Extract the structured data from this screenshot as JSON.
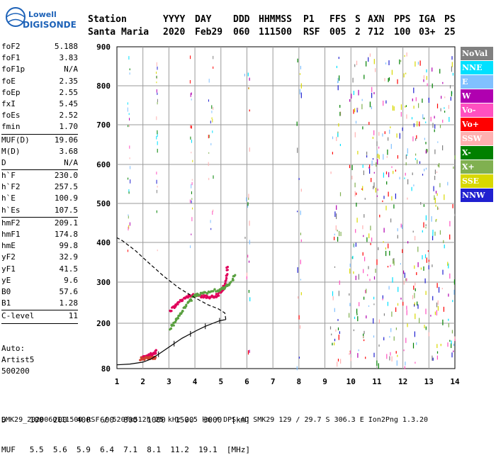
{
  "logo": {
    "line1": "Lowell",
    "line2": "DIGISONDE"
  },
  "header": {
    "labels": [
      "Station",
      "YYYY",
      "DAY",
      "DDD",
      "HHMMSS",
      "P1",
      "FFS",
      "S",
      "AXN",
      "PPS",
      "IGA",
      "PS"
    ],
    "values": [
      "Santa Maria",
      "2020",
      "Feb29",
      "060",
      "111500",
      "RSF",
      "005",
      "2",
      "712",
      "100",
      "03+",
      "25"
    ]
  },
  "params": {
    "group1": [
      {
        "name": "foF2",
        "value": "5.188"
      },
      {
        "name": "foF1",
        "value": "3.83"
      },
      {
        "name": "foF1p",
        "value": "N/A"
      },
      {
        "name": "foE",
        "value": "2.35"
      },
      {
        "name": "foEp",
        "value": "2.55"
      },
      {
        "name": "fxI",
        "value": "5.45"
      },
      {
        "name": "foEs",
        "value": "2.52"
      },
      {
        "name": "fmin",
        "value": "1.70"
      }
    ],
    "group2": [
      {
        "name": "MUF(D)",
        "value": "19.06"
      },
      {
        "name": "M(D)",
        "value": "3.68"
      },
      {
        "name": "D",
        "value": "N/A"
      }
    ],
    "group3": [
      {
        "name": "h`F",
        "value": "230.0"
      },
      {
        "name": "h`F2",
        "value": "257.5"
      },
      {
        "name": "h`E",
        "value": "100.9"
      },
      {
        "name": "h`Es",
        "value": "107.5"
      }
    ],
    "group4": [
      {
        "name": "hmF2",
        "value": "209.1"
      },
      {
        "name": "hmF1",
        "value": "174.8"
      },
      {
        "name": "hmE",
        "value": "99.8"
      },
      {
        "name": "yF2",
        "value": "32.9"
      },
      {
        "name": "yF1",
        "value": "41.5"
      },
      {
        "name": "yE",
        "value": "9.6"
      },
      {
        "name": "B0",
        "value": "57.6"
      },
      {
        "name": "B1",
        "value": "1.28"
      }
    ],
    "group5": [
      {
        "name": "C-level",
        "value": "11"
      }
    ]
  },
  "auto": {
    "line1": "Auto:",
    "line2": "Artist5",
    "line3": "500200"
  },
  "legend": [
    {
      "label": "NoVal",
      "color": "#808080"
    },
    {
      "label": "NNE",
      "color": "#00e0ff"
    },
    {
      "label": "E",
      "color": "#80c0ff"
    },
    {
      "label": "W",
      "color": "#b000b0"
    },
    {
      "label": "Vo-",
      "color": "#ff50c0"
    },
    {
      "label": "Vo+",
      "color": "#ff0000"
    },
    {
      "label": "SSW",
      "color": "#ffb0b0"
    },
    {
      "label": "X-",
      "color": "#008000"
    },
    {
      "label": "X+",
      "color": "#80b050"
    },
    {
      "label": "SSE",
      "color": "#d8d800"
    },
    {
      "label": "NNW",
      "color": "#2020d0"
    }
  ],
  "bottom": {
    "d_row": "D     100  200  400  600  800  1000  1500  3000  [km]",
    "muf_row": "MUF   5.5  5.6  5.9  6.4  7.1  8.1  11.2  19.1  [MHz]"
  },
  "footer": "SMK29_2020060111500.RSF / 520fx512h 25 kHz 2.5 km / DPS-4D SMK29 129 / 29.7 S 306.3 E Ion2Png 1.3.20",
  "chart_data": {
    "type": "scatter",
    "xlim": [
      1,
      14
    ],
    "ylim": [
      80,
      900
    ],
    "x_ticks": [
      "1",
      "2",
      "3",
      "4",
      "5",
      "6",
      "7",
      "8",
      "9",
      "10",
      "11",
      "12",
      "13",
      "14"
    ],
    "y_ticks": [
      "80",
      "200",
      "300",
      "400",
      "500",
      "600",
      "700",
      "800",
      "900"
    ],
    "y_tick_values": [
      80,
      200,
      300,
      400,
      500,
      600,
      700,
      800,
      900
    ],
    "series": [
      {
        "name": "O-trace",
        "color": "#e0005a",
        "points": [
          [
            1.95,
            108
          ],
          [
            2.05,
            110
          ],
          [
            2.15,
            112
          ],
          [
            2.25,
            115
          ],
          [
            2.35,
            118
          ],
          [
            2.45,
            122
          ],
          [
            2.55,
            127
          ],
          [
            3.05,
            230
          ],
          [
            3.2,
            240
          ],
          [
            3.35,
            248
          ],
          [
            3.5,
            256
          ],
          [
            3.65,
            262
          ],
          [
            3.8,
            266
          ],
          [
            3.95,
            268
          ],
          [
            4.1,
            268
          ],
          [
            4.25,
            266
          ],
          [
            4.4,
            264
          ],
          [
            4.55,
            263
          ],
          [
            4.7,
            264
          ],
          [
            4.85,
            268
          ],
          [
            5.0,
            275
          ],
          [
            5.1,
            285
          ],
          [
            5.17,
            300
          ],
          [
            5.22,
            320
          ],
          [
            5.25,
            340
          ]
        ]
      },
      {
        "name": "X-trace",
        "color": "#5aa040",
        "points": [
          [
            3.05,
            185
          ],
          [
            3.15,
            195
          ],
          [
            3.25,
            205
          ],
          [
            3.35,
            215
          ],
          [
            3.5,
            228
          ],
          [
            3.65,
            242
          ],
          [
            3.8,
            255
          ],
          [
            3.95,
            264
          ],
          [
            4.1,
            270
          ],
          [
            4.25,
            272
          ],
          [
            4.45,
            275
          ],
          [
            4.65,
            278
          ],
          [
            4.85,
            280
          ],
          [
            5.0,
            282
          ],
          [
            5.15,
            285
          ],
          [
            5.3,
            295
          ],
          [
            5.45,
            308
          ],
          [
            5.55,
            318
          ]
        ]
      },
      {
        "name": "Es-trace",
        "color": "#d04030",
        "points": [
          [
            1.9,
            106
          ],
          [
            2.0,
            107
          ],
          [
            2.1,
            107
          ],
          [
            2.2,
            108
          ],
          [
            2.3,
            108
          ],
          [
            2.4,
            109
          ],
          [
            2.5,
            109
          ]
        ]
      }
    ],
    "profile": [
      [
        1.0,
        90
      ],
      [
        1.5,
        92
      ],
      [
        2.0,
        97
      ],
      [
        2.3,
        105
      ],
      [
        2.6,
        118
      ],
      [
        2.9,
        132
      ],
      [
        3.2,
        146
      ],
      [
        3.5,
        160
      ],
      [
        3.83,
        172
      ],
      [
        4.1,
        182
      ],
      [
        4.4,
        192
      ],
      [
        4.7,
        200
      ],
      [
        4.95,
        206
      ],
      [
        5.188,
        209
      ]
    ],
    "profile_extension": [
      [
        5.188,
        209
      ],
      [
        5.15,
        225
      ],
      [
        4.9,
        235
      ],
      [
        4.5,
        245
      ],
      [
        4.0,
        262
      ],
      [
        3.4,
        285
      ],
      [
        2.8,
        315
      ],
      [
        2.2,
        350
      ],
      [
        1.7,
        380
      ],
      [
        1.2,
        405
      ],
      [
        1.0,
        412
      ]
    ]
  }
}
